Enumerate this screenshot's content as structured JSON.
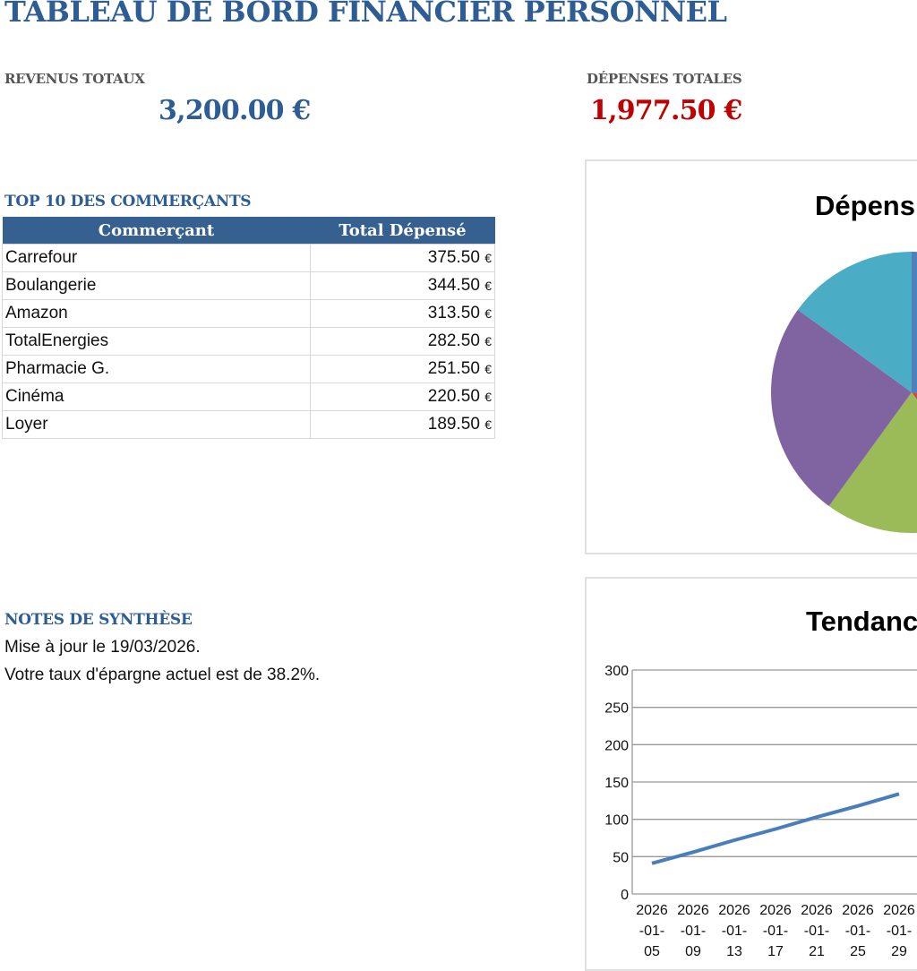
{
  "title": "TABLEAU DE BORD FINANCIER PERSONNEL",
  "kpis": {
    "income_label": "REVENUS TOTAUX",
    "income_value": "3,200.00 €",
    "expense_label": "DÉPENSES TOTALES",
    "expense_value": "1,977.50 €",
    "income_color": "#2e5c94",
    "expense_color": "#c00000"
  },
  "merchants": {
    "heading": "TOP 10 DES COMMERÇANTS",
    "columns": [
      "Commerçant",
      "Total Dépensé"
    ],
    "rows": [
      {
        "name": "Carrefour",
        "amount": "375.50",
        "currency": "€"
      },
      {
        "name": "Boulangerie",
        "amount": "344.50",
        "currency": "€"
      },
      {
        "name": "Amazon",
        "amount": "313.50",
        "currency": "€"
      },
      {
        "name": "TotalEnergies",
        "amount": "282.50",
        "currency": "€"
      },
      {
        "name": "Pharmacie G.",
        "amount": "251.50",
        "currency": "€"
      },
      {
        "name": "Cinéma",
        "amount": "220.50",
        "currency": "€"
      },
      {
        "name": "Loyer",
        "amount": "189.50",
        "currency": "€"
      }
    ]
  },
  "notes": {
    "heading": "NOTES DE SYNTHÈSE",
    "lines": [
      "Mise à jour le 19/03/2026.",
      "Votre taux d'épargne actuel est de 38.2%."
    ]
  },
  "chart_data": [
    {
      "type": "pie",
      "title": "Dépens",
      "values": [
        26,
        14,
        20,
        25,
        15
      ],
      "colors": [
        "#4f81bd",
        "#c0504d",
        "#9bbb59",
        "#8064a2",
        "#4bacc6"
      ]
    },
    {
      "type": "line",
      "title": "Tendanc",
      "categories": [
        "2026-01-05",
        "2026-01-09",
        "2026-01-13",
        "2026-01-17",
        "2026-01-21",
        "2026-01-25",
        "2026-01-29"
      ],
      "values": [
        41,
        56,
        72,
        87,
        103,
        118,
        134
      ],
      "ylim": [
        0,
        300
      ],
      "yticks": [
        0,
        50,
        100,
        150,
        200,
        250,
        300
      ],
      "grid": true,
      "color": "#4a7ebb"
    }
  ]
}
